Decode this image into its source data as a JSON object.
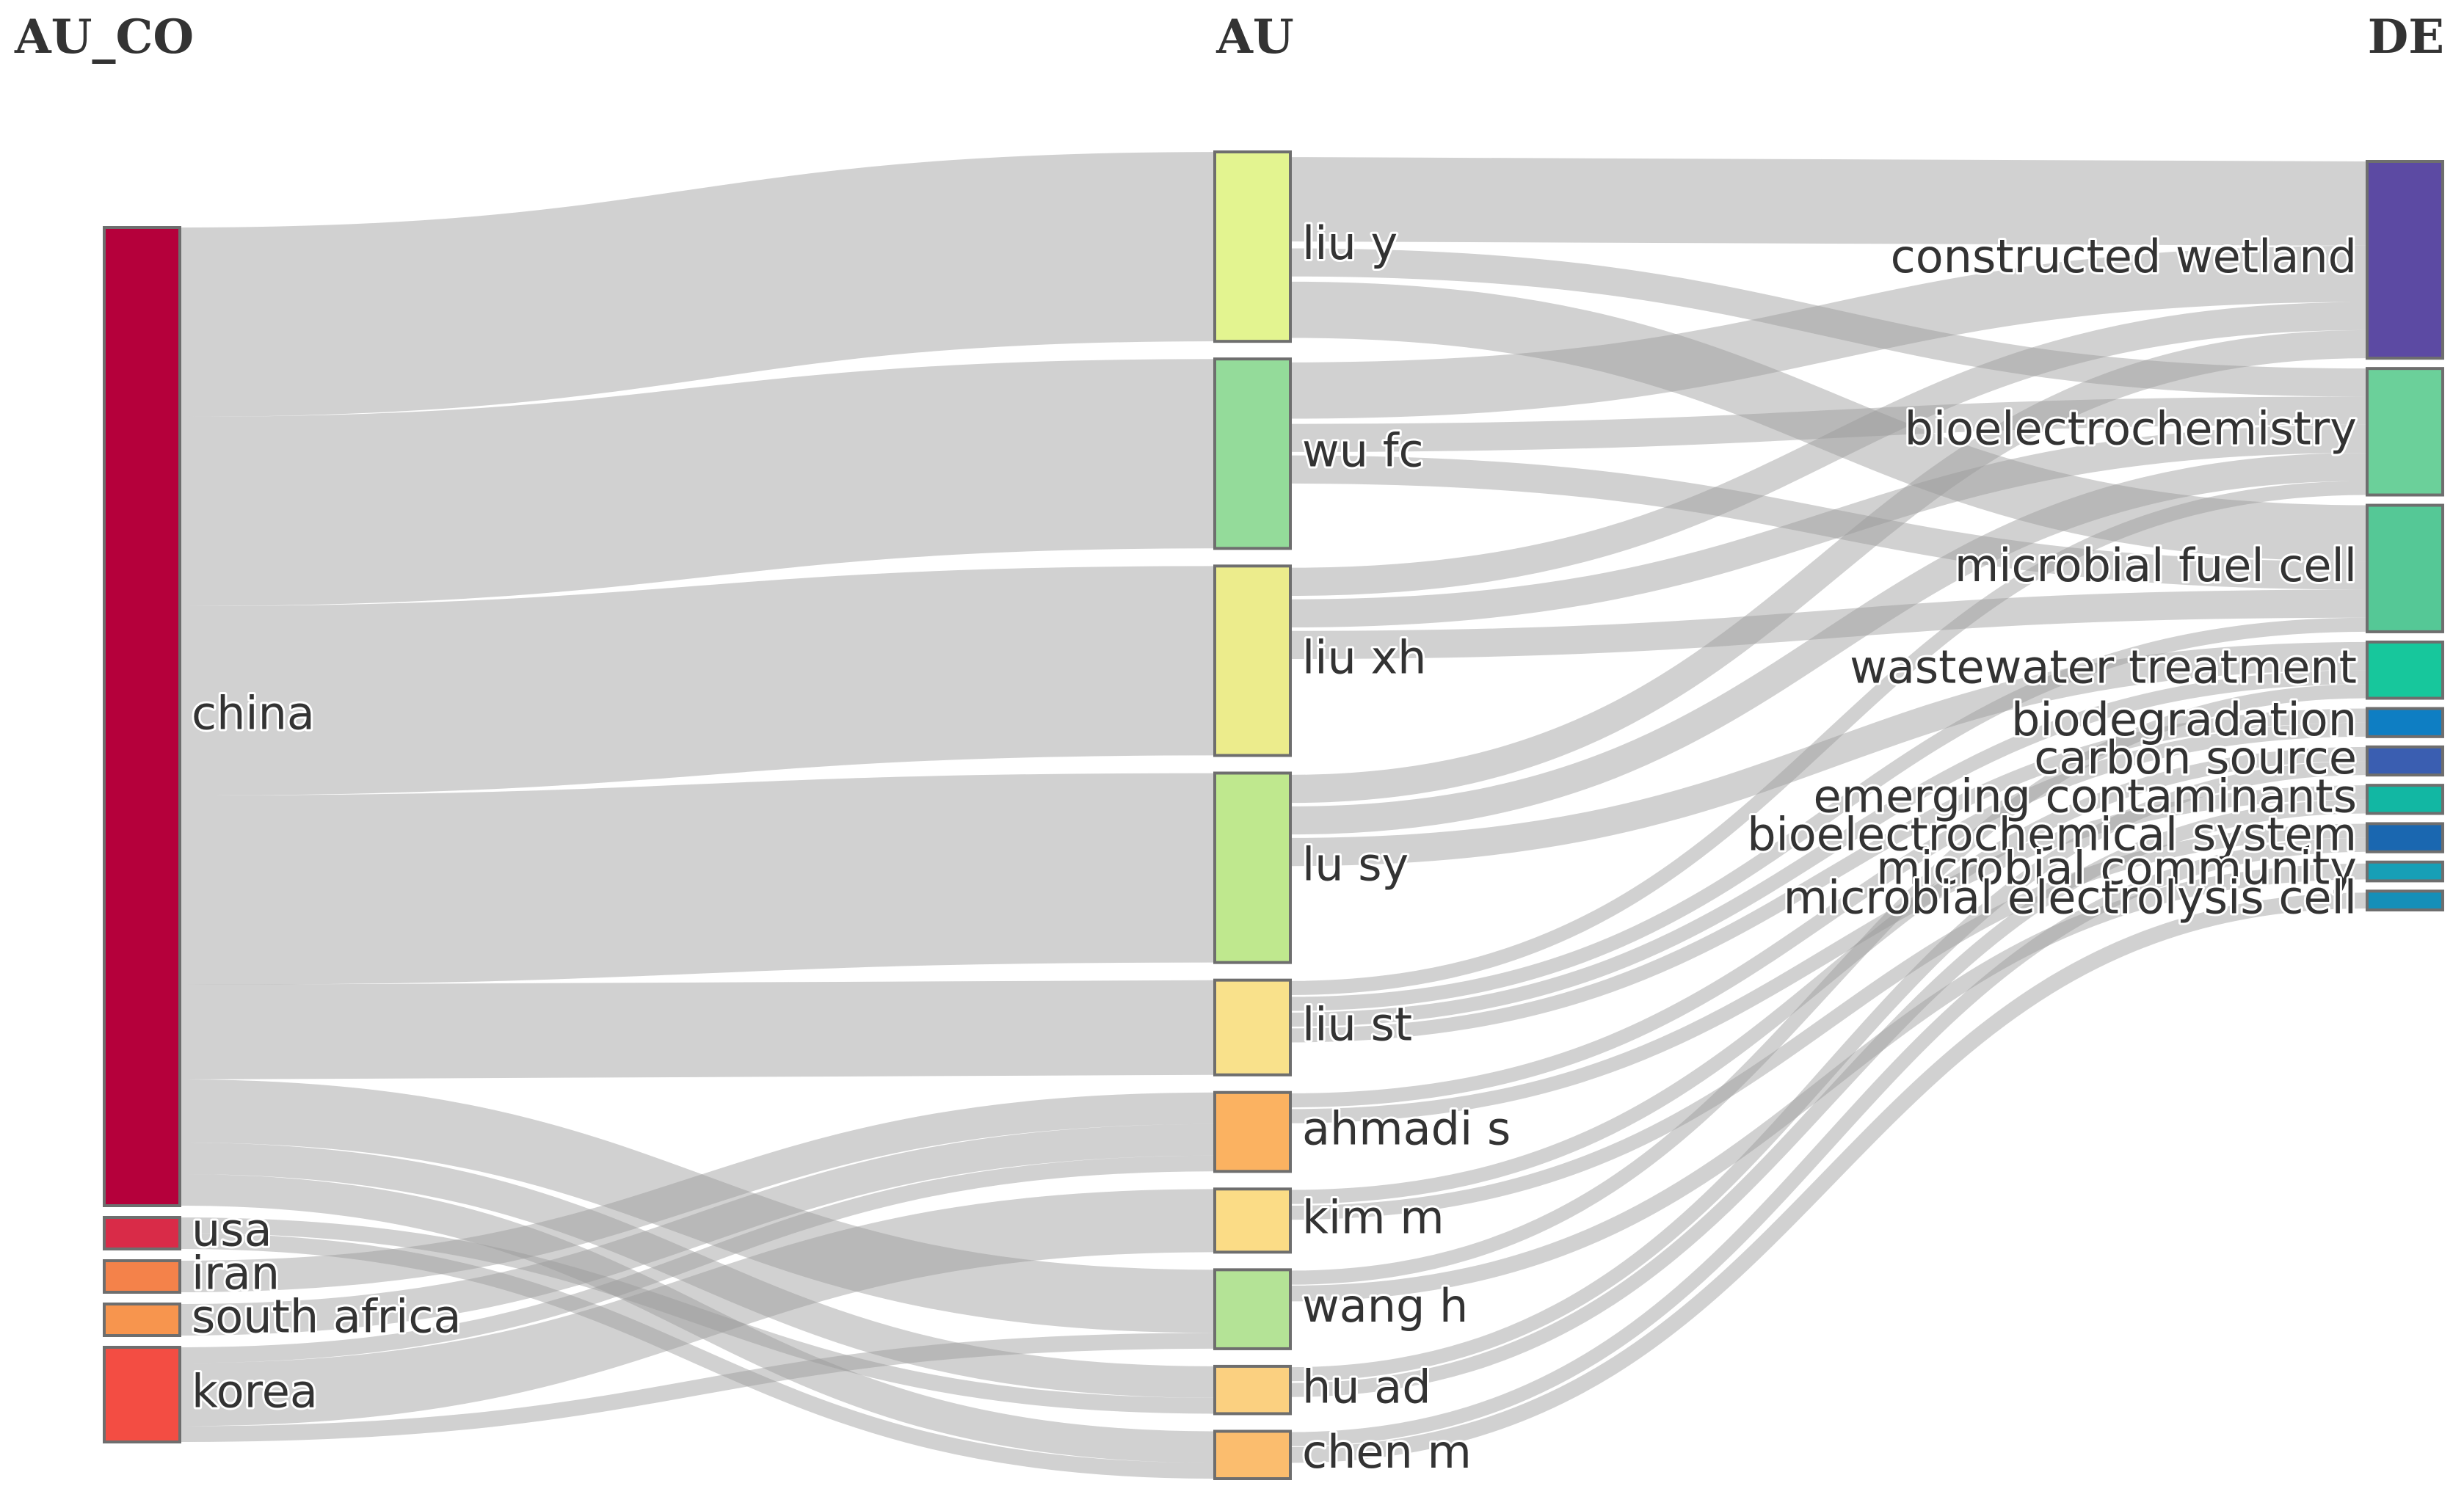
{
  "columns": {
    "left": "AU_CO",
    "middle": "AU",
    "right": "DE"
  },
  "chart_data": {
    "type": "sankey",
    "nodes": [
      {
        "id": "china",
        "label": "china",
        "column": 0,
        "color": "#b5003b"
      },
      {
        "id": "usa",
        "label": "usa",
        "column": 0,
        "color": "#d92b48"
      },
      {
        "id": "iran",
        "label": "iran",
        "column": 0,
        "color": "#f4824a"
      },
      {
        "id": "south africa",
        "label": "south africa",
        "column": 0,
        "color": "#f7954e"
      },
      {
        "id": "korea",
        "label": "korea",
        "column": 0,
        "color": "#f34d43"
      },
      {
        "id": "liu y",
        "label": "liu y",
        "column": 1,
        "color": "#e3f490"
      },
      {
        "id": "wu fc",
        "label": "wu fc",
        "column": 1,
        "color": "#94db9a"
      },
      {
        "id": "liu xh",
        "label": "liu xh",
        "column": 1,
        "color": "#ecec8c"
      },
      {
        "id": "lu sy",
        "label": "lu sy",
        "column": 1,
        "color": "#bfe88e"
      },
      {
        "id": "liu st",
        "label": "liu st",
        "column": 1,
        "color": "#f9e18b"
      },
      {
        "id": "ahmadi s",
        "label": "ahmadi s",
        "column": 1,
        "color": "#fbb261"
      },
      {
        "id": "kim m",
        "label": "kim m",
        "column": 1,
        "color": "#fbdc86"
      },
      {
        "id": "wang h",
        "label": "wang h",
        "column": 1,
        "color": "#b4e396"
      },
      {
        "id": "hu ad",
        "label": "hu ad",
        "column": 1,
        "color": "#fbd080"
      },
      {
        "id": "chen m",
        "label": "chen m",
        "column": 1,
        "color": "#fbbd6e"
      },
      {
        "id": "constructed wetland",
        "label": "constructed wetland",
        "column": 2,
        "color": "#5c4aa3"
      },
      {
        "id": "bioelectrochemistry",
        "label": "bioelectrochemistry",
        "column": 2,
        "color": "#6bd09a"
      },
      {
        "id": "microbial fuel cell",
        "label": "microbial fuel cell",
        "column": 2,
        "color": "#55c896"
      },
      {
        "id": "wastewater treatment",
        "label": "wastewater treatment",
        "column": 2,
        "color": "#17c79c"
      },
      {
        "id": "biodegradation",
        "label": "biodegradation",
        "column": 2,
        "color": "#0e7ec3"
      },
      {
        "id": "carbon source",
        "label": "carbon source",
        "column": 2,
        "color": "#3a5eb1"
      },
      {
        "id": "emerging contaminants",
        "label": "emerging contaminants",
        "column": 2,
        "color": "#12b7a3"
      },
      {
        "id": "bioelectrochemical system",
        "label": "bioelectrochemical system",
        "column": 2,
        "color": "#1a67b0"
      },
      {
        "id": "microbial community",
        "label": "microbial community",
        "column": 2,
        "color": "#179fb6"
      },
      {
        "id": "microbial electrolysis cell",
        "label": "microbial electrolysis cell",
        "column": 2,
        "color": "#158fb8"
      }
    ],
    "links": [
      {
        "source": "china",
        "target": "liu y",
        "value": 6
      },
      {
        "source": "china",
        "target": "wu fc",
        "value": 6
      },
      {
        "source": "china",
        "target": "liu xh",
        "value": 6
      },
      {
        "source": "china",
        "target": "lu sy",
        "value": 6
      },
      {
        "source": "china",
        "target": "liu st",
        "value": 3
      },
      {
        "source": "china",
        "target": "wang h",
        "value": 2
      },
      {
        "source": "china",
        "target": "hu ad",
        "value": 1
      },
      {
        "source": "china",
        "target": "chen m",
        "value": 1
      },
      {
        "source": "usa",
        "target": "hu ad",
        "value": 0.5
      },
      {
        "source": "usa",
        "target": "chen m",
        "value": 0.5
      },
      {
        "source": "iran",
        "target": "ahmadi s",
        "value": 1
      },
      {
        "source": "south africa",
        "target": "ahmadi s",
        "value": 1
      },
      {
        "source": "korea",
        "target": "kim m",
        "value": 2
      },
      {
        "source": "korea",
        "target": "ahmadi s",
        "value": 0.5
      },
      {
        "source": "korea",
        "target": "wang h",
        "value": 0.5
      },
      {
        "source": "liu y",
        "target": "constructed wetland",
        "value": 3
      },
      {
        "source": "liu y",
        "target": "microbial fuel cell",
        "value": 2
      },
      {
        "source": "liu y",
        "target": "bioelectrochemistry",
        "value": 1
      },
      {
        "source": "wu fc",
        "target": "constructed wetland",
        "value": 2
      },
      {
        "source": "wu fc",
        "target": "bioelectrochemistry",
        "value": 1
      },
      {
        "source": "wu fc",
        "target": "microbial fuel cell",
        "value": 1
      },
      {
        "source": "liu xh",
        "target": "bioelectrochemistry",
        "value": 1
      },
      {
        "source": "liu xh",
        "target": "microbial fuel cell",
        "value": 1
      },
      {
        "source": "liu xh",
        "target": "constructed wetland",
        "value": 1
      },
      {
        "source": "lu sy",
        "target": "constructed wetland",
        "value": 1
      },
      {
        "source": "lu sy",
        "target": "wastewater treatment",
        "value": 1
      },
      {
        "source": "lu sy",
        "target": "bioelectrochemistry",
        "value": 1
      },
      {
        "source": "liu st",
        "target": "bioelectrochemistry",
        "value": 0.5
      },
      {
        "source": "liu st",
        "target": "microbial fuel cell",
        "value": 0.5
      },
      {
        "source": "liu st",
        "target": "wastewater treatment",
        "value": 0.5
      },
      {
        "source": "liu st",
        "target": "biodegradation",
        "value": 0.5
      },
      {
        "source": "ahmadi s",
        "target": "biodegradation",
        "value": 0.5
      },
      {
        "source": "ahmadi s",
        "target": "emerging contaminants",
        "value": 0.5
      },
      {
        "source": "kim m",
        "target": "carbon source",
        "value": 0.5
      },
      {
        "source": "kim m",
        "target": "bioelectrochemical system",
        "value": 0.5
      },
      {
        "source": "wang h",
        "target": "microbial community",
        "value": 0.5
      },
      {
        "source": "wang h",
        "target": "wastewater treatment",
        "value": 0.5
      },
      {
        "source": "hu ad",
        "target": "emerging contaminants",
        "value": 0.5
      },
      {
        "source": "hu ad",
        "target": "carbon source",
        "value": 0.5
      },
      {
        "source": "chen m",
        "target": "microbial electrolysis cell",
        "value": 0.5
      },
      {
        "source": "chen m",
        "target": "bioelectrochemical system",
        "value": 0.5
      }
    ]
  }
}
